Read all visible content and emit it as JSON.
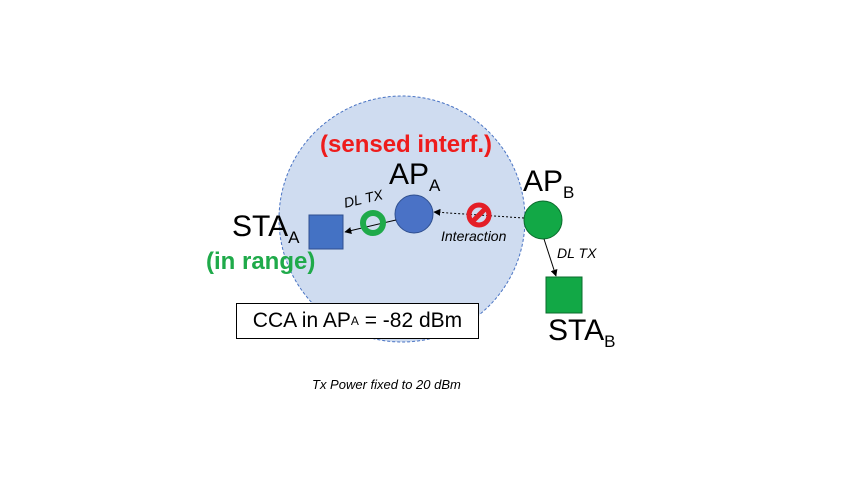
{
  "labels": {
    "sensed": "(sensed interf.)",
    "ap_a_main": "AP",
    "ap_a_sub": "A",
    "ap_b_main": "AP",
    "ap_b_sub": "B",
    "sta_a_main": "STA",
    "sta_a_sub": "A",
    "sta_b_main": "STA",
    "sta_b_sub": "B",
    "in_range": "(in range)",
    "dl_tx_a": "DL TX",
    "dl_tx_b": "DL TX",
    "interaction": "Interaction",
    "cca_prefix": "CCA in AP",
    "cca_sub": "A",
    "cca_value": " = -82 dBm",
    "footer": "Tx Power fixed to 20 dBm"
  },
  "icons": {
    "ok": "green-ring-icon",
    "blocked": "no-entry-icon"
  },
  "colors": {
    "range_fill": "#cfdcf0",
    "range_border": "#4a74c4",
    "ap_a": "#4a72c6",
    "sta_a": "#4472c4",
    "ap_b": "#12a846",
    "sta_b": "#12a846",
    "sensed_text": "#ee1c1c",
    "in_range_text": "#1faa4a",
    "blocked_icon": "#e41e26",
    "ok_icon": "#1faa4a"
  }
}
